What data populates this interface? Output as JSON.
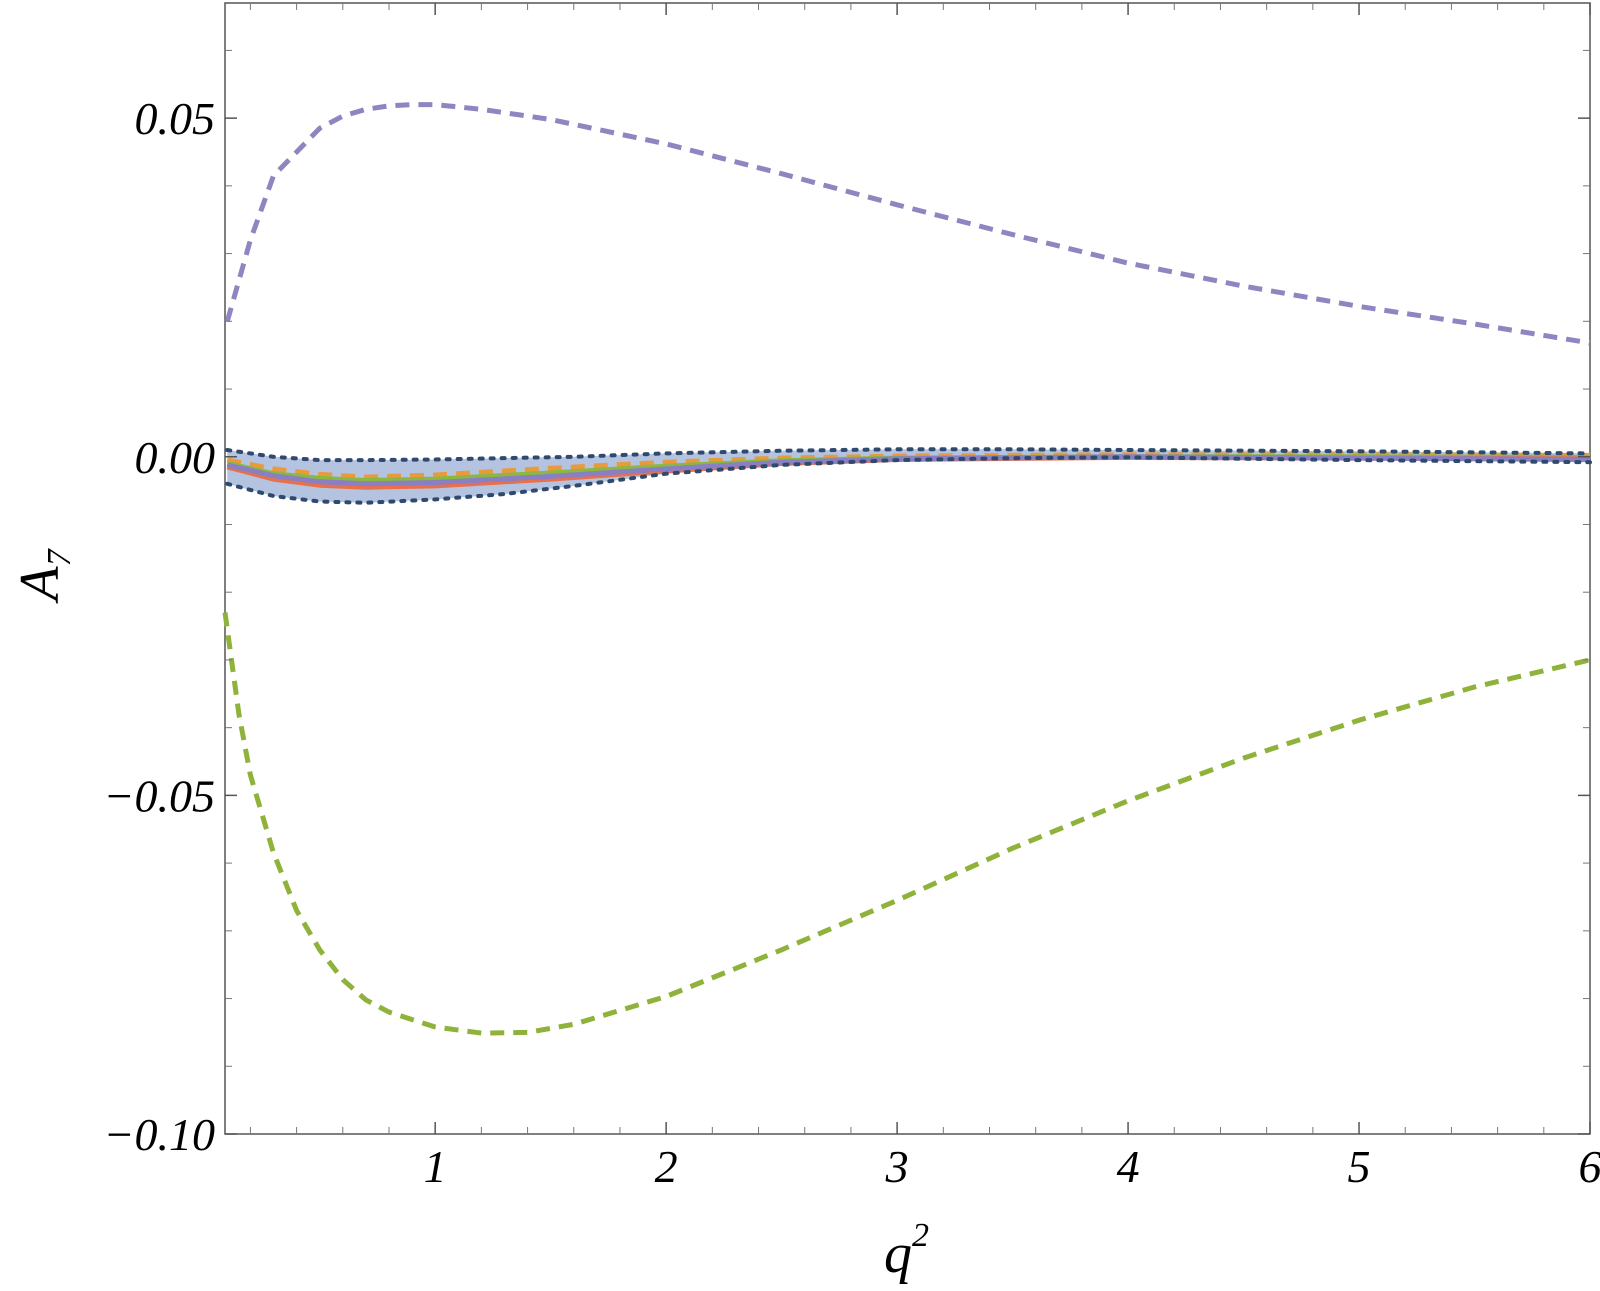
{
  "chart_data": {
    "type": "line",
    "title": "",
    "xlabel": "q",
    "xlabel_superscript": "2",
    "ylabel": "A",
    "ylabel_subscript": "7",
    "xlim": [
      0.09,
      6.0
    ],
    "ylim": [
      -0.1,
      0.067
    ],
    "x_ticks": [
      1,
      2,
      3,
      4,
      5,
      6
    ],
    "x_tick_labels": [
      "1",
      "2",
      "3",
      "4",
      "5",
      "6"
    ],
    "y_ticks": [
      -0.1,
      -0.05,
      0.0,
      0.05
    ],
    "y_tick_labels": [
      "−0.10",
      "−0.05",
      "0.00",
      "0.05"
    ],
    "grid": false,
    "legend": "none",
    "band": {
      "color": "#a7b9d9",
      "x": [
        0.1,
        0.3,
        0.5,
        0.7,
        1.0,
        1.3,
        1.6,
        2.0,
        2.5,
        3.0,
        3.5,
        4.0,
        5.0,
        6.0
      ],
      "upper": [
        0.001,
        0.0,
        -0.0005,
        -0.0005,
        -0.0004,
        -0.0002,
        0.0,
        0.0005,
        0.0009,
        0.0011,
        0.0011,
        0.001,
        0.0008,
        0.0005
      ],
      "lower": [
        -0.004,
        -0.0058,
        -0.0066,
        -0.0068,
        -0.0063,
        -0.0055,
        -0.0043,
        -0.0025,
        -0.0012,
        -0.0005,
        -0.0002,
        -0.0001,
        -0.0005,
        -0.0008
      ]
    },
    "series": [
      {
        "style": "dashed",
        "color": "#8e86c0",
        "x": [
          0.1,
          0.2,
          0.3,
          0.4,
          0.5,
          0.6,
          0.7,
          0.8,
          0.9,
          1.0,
          1.2,
          1.5,
          2.0,
          2.5,
          3.0,
          3.5,
          4.0,
          4.5,
          5.0,
          5.5,
          6.0
        ],
        "y": [
          0.02,
          0.032,
          0.0415,
          0.045,
          0.0485,
          0.0503,
          0.0513,
          0.0518,
          0.052,
          0.052,
          0.0513,
          0.0498,
          0.0462,
          0.0418,
          0.0372,
          0.0328,
          0.0286,
          0.0252,
          0.0222,
          0.0196,
          0.0168
        ]
      },
      {
        "style": "dashed",
        "color": "#8fb23a",
        "x": [
          0.09,
          0.15,
          0.2,
          0.3,
          0.4,
          0.5,
          0.6,
          0.7,
          0.8,
          1.0,
          1.2,
          1.4,
          1.6,
          2.0,
          2.5,
          3.0,
          3.5,
          4.0,
          4.5,
          5.0,
          5.5,
          6.0
        ],
        "y": [
          -0.023,
          -0.038,
          -0.047,
          -0.0585,
          -0.067,
          -0.0728,
          -0.0772,
          -0.0802,
          -0.082,
          -0.0842,
          -0.0851,
          -0.085,
          -0.0838,
          -0.0797,
          -0.0728,
          -0.0655,
          -0.0578,
          -0.0508,
          -0.0445,
          -0.0389,
          -0.034,
          -0.03
        ]
      },
      {
        "style": "dashed",
        "color": "#e89a3c",
        "x": [
          0.1,
          0.3,
          0.5,
          0.7,
          1.0,
          1.5,
          2.0,
          2.5,
          3.0,
          4.0,
          5.0,
          6.0
        ],
        "y": [
          -0.0005,
          -0.0018,
          -0.0026,
          -0.003,
          -0.0027,
          -0.0017,
          -0.0008,
          -0.0002,
          0.0001,
          0.0003,
          0.0003,
          0.0002
        ]
      },
      {
        "style": "solid",
        "color": "#8cb840",
        "x": [
          0.1,
          0.3,
          0.5,
          0.7,
          1.0,
          1.5,
          2.0,
          2.5,
          3.0,
          4.0,
          5.0,
          6.0
        ],
        "y": [
          -0.001,
          -0.0025,
          -0.0032,
          -0.0035,
          -0.0033,
          -0.0024,
          -0.0014,
          -0.0006,
          -0.0002,
          0.0,
          0.0,
          -0.0001
        ]
      },
      {
        "style": "solid",
        "color": "#e8704a",
        "x": [
          0.1,
          0.3,
          0.5,
          0.7,
          1.0,
          1.5,
          2.0,
          2.5,
          3.0,
          4.0,
          5.0,
          6.0
        ],
        "y": [
          -0.0015,
          -0.0033,
          -0.0042,
          -0.0045,
          -0.0043,
          -0.0033,
          -0.0021,
          -0.001,
          -0.0004,
          -0.0001,
          -0.0002,
          -0.0003
        ]
      },
      {
        "style": "solid",
        "color": "#8a7fc2",
        "x": [
          0.1,
          0.3,
          0.5,
          0.7,
          1.0,
          1.5,
          2.0,
          2.5,
          3.0,
          4.0,
          5.0,
          6.0
        ],
        "y": [
          -0.0012,
          -0.0028,
          -0.0037,
          -0.004,
          -0.0038,
          -0.0029,
          -0.0018,
          -0.0008,
          -0.0003,
          0.0,
          -0.0002,
          -0.0004
        ]
      },
      {
        "style": "dotted",
        "color": "#2f4a6e",
        "x": [
          0.1,
          0.3,
          0.5,
          0.7,
          1.0,
          1.3,
          1.6,
          2.0,
          2.5,
          3.0,
          3.5,
          4.0,
          5.0,
          6.0
        ],
        "y": [
          0.001,
          0.0,
          -0.0005,
          -0.0005,
          -0.0004,
          -0.0002,
          0.0,
          0.0005,
          0.0009,
          0.0011,
          0.0011,
          0.001,
          0.0008,
          0.0005
        ]
      },
      {
        "style": "dotted",
        "color": "#2f4a6e",
        "x": [
          0.1,
          0.3,
          0.5,
          0.7,
          1.0,
          1.3,
          1.6,
          2.0,
          2.5,
          3.0,
          3.5,
          4.0,
          5.0,
          6.0
        ],
        "y": [
          -0.004,
          -0.0058,
          -0.0066,
          -0.0068,
          -0.0063,
          -0.0055,
          -0.0043,
          -0.0025,
          -0.0012,
          -0.0005,
          -0.0002,
          -0.0001,
          -0.0005,
          -0.0008
        ]
      }
    ]
  }
}
